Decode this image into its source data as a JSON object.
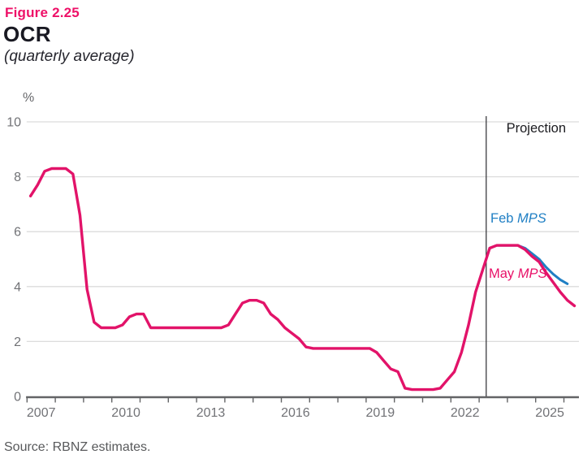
{
  "header": {
    "figure_label": "Figure 2.25",
    "title": "OCR",
    "subtitle": "(quarterly average)"
  },
  "footer": {
    "source": "Source: RBNZ estimates."
  },
  "colors": {
    "accent_pink": "#e81168",
    "accent_blue": "#1f7fc4",
    "grid_gray": "#dcdcdc",
    "axis_gray": "#636466",
    "tick_label_gray": "#717276",
    "projection_line": "#2b2b2f"
  },
  "chart_data": {
    "type": "line",
    "title": "OCR",
    "subtitle": "(quarterly average)",
    "xlabel": "",
    "ylabel": "%",
    "ylim": [
      0,
      10
    ],
    "xlim": [
      2007,
      2026.5
    ],
    "grid": "horizontal",
    "legend_position": "inline-annotations",
    "y_axis": {
      "min": 0,
      "max": 10,
      "ticks": [
        0,
        2,
        4,
        6,
        8,
        10
      ]
    },
    "x_axis": {
      "min": 2007,
      "max": 2026.5,
      "tick_start": 2007,
      "tick_end": 2026,
      "tick_interval": 1,
      "labels": [
        {
          "text": "2007",
          "center": 2007.5
        },
        {
          "text": "2010",
          "center": 2010.5
        },
        {
          "text": "2013",
          "center": 2013.5
        },
        {
          "text": "2016",
          "center": 2016.5
        },
        {
          "text": "2019",
          "center": 2019.5
        },
        {
          "text": "2022",
          "center": 2022.5
        },
        {
          "text": "2025",
          "center": 2025.5
        }
      ]
    },
    "projection_start": 2023.25,
    "annotations": {
      "projection": "Projection",
      "feb": {
        "prefix": "Feb ",
        "italic": "MPS"
      },
      "may": {
        "prefix": "May ",
        "italic": "MPS"
      }
    },
    "series": [
      {
        "name": "Feb MPS",
        "color": "#1f7fc4",
        "stroke_width": 3,
        "points": [
          [
            2023.375,
            5.4
          ],
          [
            2023.625,
            5.5
          ],
          [
            2023.875,
            5.5
          ],
          [
            2024.125,
            5.5
          ],
          [
            2024.375,
            5.5
          ],
          [
            2024.625,
            5.4
          ],
          [
            2024.875,
            5.2
          ],
          [
            2025.125,
            5.0
          ],
          [
            2025.375,
            4.7
          ],
          [
            2025.625,
            4.45
          ],
          [
            2025.875,
            4.25
          ],
          [
            2026.125,
            4.1
          ]
        ]
      },
      {
        "name": "May MPS",
        "color": "#e21369",
        "stroke_width": 3.4,
        "points": [
          [
            2007.125,
            7.3
          ],
          [
            2007.375,
            7.7
          ],
          [
            2007.625,
            8.2
          ],
          [
            2007.875,
            8.3
          ],
          [
            2008.125,
            8.3
          ],
          [
            2008.375,
            8.3
          ],
          [
            2008.625,
            8.1
          ],
          [
            2008.875,
            6.6
          ],
          [
            2009.125,
            3.9
          ],
          [
            2009.375,
            2.7
          ],
          [
            2009.625,
            2.5
          ],
          [
            2009.875,
            2.5
          ],
          [
            2010.125,
            2.5
          ],
          [
            2010.375,
            2.6
          ],
          [
            2010.625,
            2.9
          ],
          [
            2010.875,
            3.0
          ],
          [
            2011.125,
            3.0
          ],
          [
            2011.375,
            2.5
          ],
          [
            2011.625,
            2.5
          ],
          [
            2011.875,
            2.5
          ],
          [
            2012.125,
            2.5
          ],
          [
            2012.375,
            2.5
          ],
          [
            2012.625,
            2.5
          ],
          [
            2012.875,
            2.5
          ],
          [
            2013.125,
            2.5
          ],
          [
            2013.375,
            2.5
          ],
          [
            2013.625,
            2.5
          ],
          [
            2013.875,
            2.5
          ],
          [
            2014.125,
            2.6
          ],
          [
            2014.375,
            3.0
          ],
          [
            2014.625,
            3.4
          ],
          [
            2014.875,
            3.5
          ],
          [
            2015.125,
            3.5
          ],
          [
            2015.375,
            3.4
          ],
          [
            2015.625,
            3.0
          ],
          [
            2015.875,
            2.8
          ],
          [
            2016.125,
            2.5
          ],
          [
            2016.375,
            2.3
          ],
          [
            2016.625,
            2.1
          ],
          [
            2016.875,
            1.8
          ],
          [
            2017.125,
            1.75
          ],
          [
            2017.375,
            1.75
          ],
          [
            2017.625,
            1.75
          ],
          [
            2017.875,
            1.75
          ],
          [
            2018.125,
            1.75
          ],
          [
            2018.375,
            1.75
          ],
          [
            2018.625,
            1.75
          ],
          [
            2018.875,
            1.75
          ],
          [
            2019.125,
            1.75
          ],
          [
            2019.375,
            1.6
          ],
          [
            2019.625,
            1.3
          ],
          [
            2019.875,
            1.0
          ],
          [
            2020.125,
            0.9
          ],
          [
            2020.375,
            0.3
          ],
          [
            2020.625,
            0.25
          ],
          [
            2020.875,
            0.25
          ],
          [
            2021.125,
            0.25
          ],
          [
            2021.375,
            0.25
          ],
          [
            2021.625,
            0.3
          ],
          [
            2021.875,
            0.6
          ],
          [
            2022.125,
            0.9
          ],
          [
            2022.375,
            1.6
          ],
          [
            2022.625,
            2.6
          ],
          [
            2022.875,
            3.8
          ],
          [
            2023.125,
            4.6
          ],
          [
            2023.375,
            5.4
          ],
          [
            2023.625,
            5.5
          ],
          [
            2023.875,
            5.5
          ],
          [
            2024.125,
            5.5
          ],
          [
            2024.375,
            5.5
          ],
          [
            2024.625,
            5.35
          ],
          [
            2024.875,
            5.1
          ],
          [
            2025.125,
            4.9
          ],
          [
            2025.375,
            4.5
          ],
          [
            2025.625,
            4.15
          ],
          [
            2025.875,
            3.8
          ],
          [
            2026.125,
            3.5
          ],
          [
            2026.375,
            3.3
          ]
        ]
      }
    ]
  }
}
